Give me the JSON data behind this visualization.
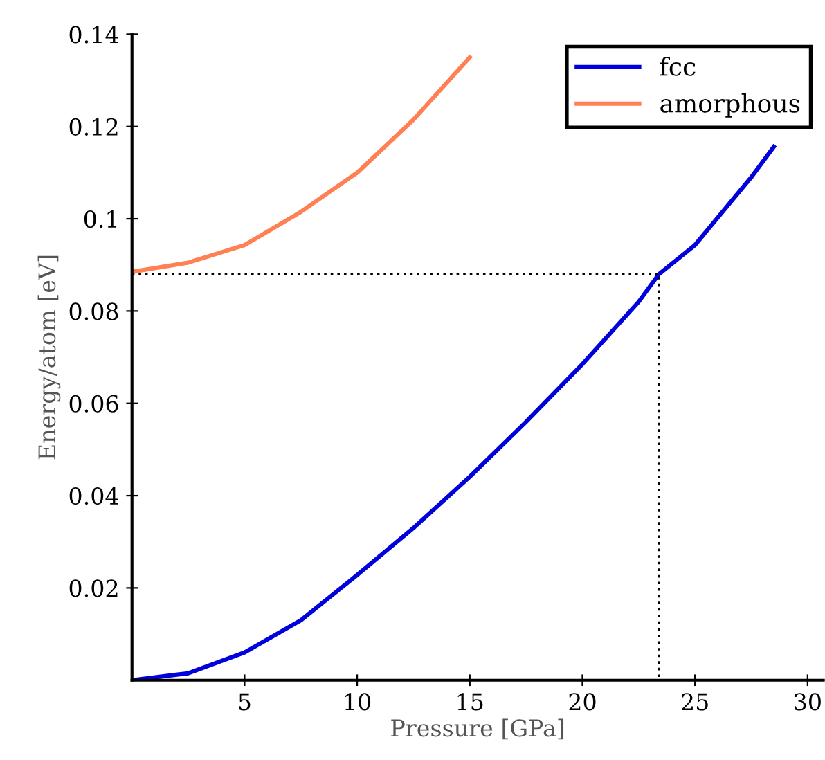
{
  "chart_data": {
    "type": "line",
    "xlabel": "Pressure [GPa]",
    "ylabel": "Energy/atom [eV]",
    "xlim": [
      0,
      30.7
    ],
    "ylim": [
      0,
      0.14
    ],
    "xticks": [
      5,
      10,
      15,
      20,
      25,
      30
    ],
    "yticks": [
      0.02,
      0.04,
      0.06,
      0.08,
      0.1,
      0.12,
      0.14
    ],
    "grid": false,
    "legend": "top right",
    "marker": "none",
    "series": [
      {
        "name": "fcc",
        "color": "#0000dd",
        "line_style": "solid",
        "x": [
          0,
          2.5,
          5,
          7.5,
          10,
          12.5,
          15,
          17.5,
          20,
          22.5,
          23.4,
          25,
          27.5,
          28.5
        ],
        "values": [
          0,
          0.0015,
          0.006,
          0.013,
          0.0228,
          0.033,
          0.0441,
          0.056,
          0.0685,
          0.082,
          0.088,
          0.0943,
          0.109,
          0.1156
        ]
      },
      {
        "name": "amorphous",
        "color": "#ff8055",
        "line_style": "solid",
        "x": [
          0,
          2.5,
          5,
          7.5,
          10,
          12.5,
          15
        ],
        "values": [
          0.0885,
          0.0905,
          0.0943,
          0.1015,
          0.11,
          0.1215,
          0.135
        ]
      },
      {
        "color": "#000000",
        "line_style": "dotted",
        "x": [
          0,
          23.4,
          23.4
        ],
        "values": [
          0.088,
          0.088,
          0
        ]
      }
    ]
  }
}
